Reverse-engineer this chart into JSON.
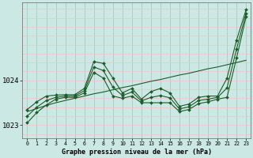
{
  "title": "Graphe pression niveau de la mer (hPa)",
  "bg_color": "#cce8e4",
  "line_color": "#1a5c2a",
  "grid_color_v": "#99ccbb",
  "grid_color_h": "#ffbbbb",
  "xlim": [
    -0.5,
    23.5
  ],
  "ylim": [
    1022.7,
    1025.75
  ],
  "yticks": [
    1023,
    1024
  ],
  "xticks": [
    0,
    1,
    2,
    3,
    4,
    5,
    6,
    7,
    8,
    9,
    10,
    11,
    12,
    13,
    14,
    15,
    16,
    17,
    18,
    19,
    20,
    21,
    22,
    23
  ],
  "series_max": [
    1023.35,
    1023.52,
    1023.65,
    1023.67,
    1023.68,
    1023.68,
    1023.82,
    1024.42,
    1024.38,
    1024.05,
    1023.72,
    1023.82,
    1023.58,
    1023.75,
    1023.82,
    1023.72,
    1023.42,
    1023.47,
    1023.62,
    1023.65,
    1023.65,
    1024.05,
    1024.9,
    1025.58
  ],
  "series_min": [
    1023.05,
    1023.28,
    1023.45,
    1023.58,
    1023.62,
    1023.62,
    1023.72,
    1024.18,
    1024.05,
    1023.65,
    1023.6,
    1023.65,
    1023.5,
    1023.5,
    1023.5,
    1023.5,
    1023.3,
    1023.35,
    1023.48,
    1023.52,
    1023.58,
    1023.62,
    1024.5,
    1025.42
  ],
  "series_avg": [
    1023.2,
    1023.4,
    1023.55,
    1023.62,
    1023.65,
    1023.65,
    1023.77,
    1024.3,
    1024.22,
    1023.85,
    1023.66,
    1023.74,
    1023.54,
    1023.62,
    1023.66,
    1023.61,
    1023.36,
    1023.41,
    1023.55,
    1023.58,
    1023.62,
    1023.83,
    1024.7,
    1025.5
  ],
  "series_trend": [
    1023.3,
    1023.37,
    1023.44,
    1023.5,
    1023.55,
    1023.6,
    1023.65,
    1023.7,
    1023.74,
    1023.79,
    1023.84,
    1023.88,
    1023.93,
    1023.98,
    1024.02,
    1024.07,
    1024.12,
    1024.16,
    1024.21,
    1024.26,
    1024.3,
    1024.35,
    1024.4,
    1024.45
  ]
}
